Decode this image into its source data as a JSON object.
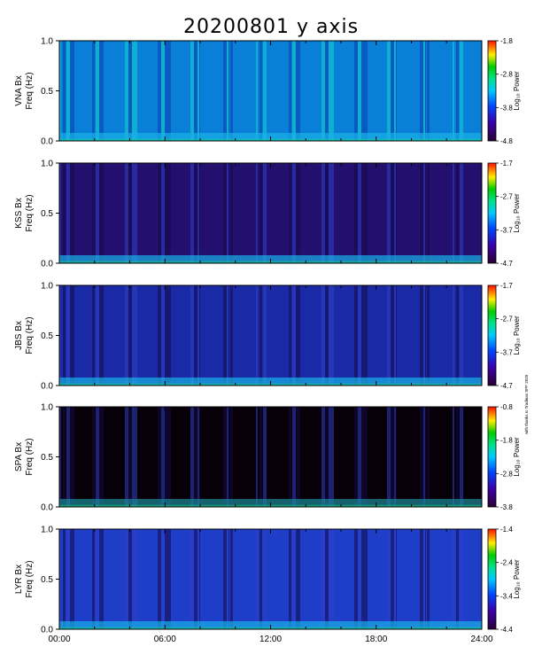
{
  "title": "20200801  y axis",
  "credit": "with thanks to Tradinas SPF 2020",
  "chart_data": {
    "type": "heatmap",
    "title": "20200801  y axis",
    "xlabel": "",
    "x_ticks": [
      "00:00",
      "06:00",
      "12:00",
      "18:00",
      "24:00"
    ],
    "xlim_hours": [
      0,
      24
    ],
    "colorbar_label": "Log₁₀ Power",
    "grid": false,
    "panels": [
      {
        "station_label": "VNA Bx",
        "ylabel": "Freq (Hz)",
        "ylim": [
          0,
          1.0
        ],
        "y_ticks": [
          "0.0",
          "0.5",
          "1.0"
        ],
        "colorbar_ticks": [
          "-1.8",
          "-2.8",
          "-3.8",
          "-4.8"
        ],
        "clim": [
          -4.8,
          -1.8
        ]
      },
      {
        "station_label": "KSS Bx",
        "ylabel": "Freq (Hz)",
        "ylim": [
          0,
          1.0
        ],
        "y_ticks": [
          "0.0",
          "0.5",
          "1.0"
        ],
        "colorbar_ticks": [
          "-1.7",
          "-2.7",
          "-3.7",
          "-4.7"
        ],
        "clim": [
          -4.7,
          -1.7
        ]
      },
      {
        "station_label": "JBS Bx",
        "ylabel": "Freq (Hz)",
        "ylim": [
          0,
          1.0
        ],
        "y_ticks": [
          "0.0",
          "0.5",
          "1.0"
        ],
        "colorbar_ticks": [
          "-1.7",
          "-2.7",
          "-3.7",
          "-4.7"
        ],
        "clim": [
          -4.7,
          -1.7
        ]
      },
      {
        "station_label": "SPA Bx",
        "ylabel": "Freq (Hz)",
        "ylim": [
          0,
          1.0
        ],
        "y_ticks": [
          "0.0",
          "0.5",
          "1.0"
        ],
        "colorbar_ticks": [
          "-0.8",
          "-1.8",
          "-2.8",
          "-3.8"
        ],
        "clim": [
          -3.8,
          -0.8
        ]
      },
      {
        "station_label": "LYR Bx",
        "ylabel": "Freq (Hz)",
        "ylim": [
          0,
          1.0
        ],
        "y_ticks": [
          "0.0",
          "0.5",
          "1.0"
        ],
        "colorbar_ticks": [
          "-1.4",
          "-2.4",
          "-3.4",
          "-4.4"
        ],
        "clim": [
          -4.4,
          -1.4
        ]
      }
    ]
  }
}
